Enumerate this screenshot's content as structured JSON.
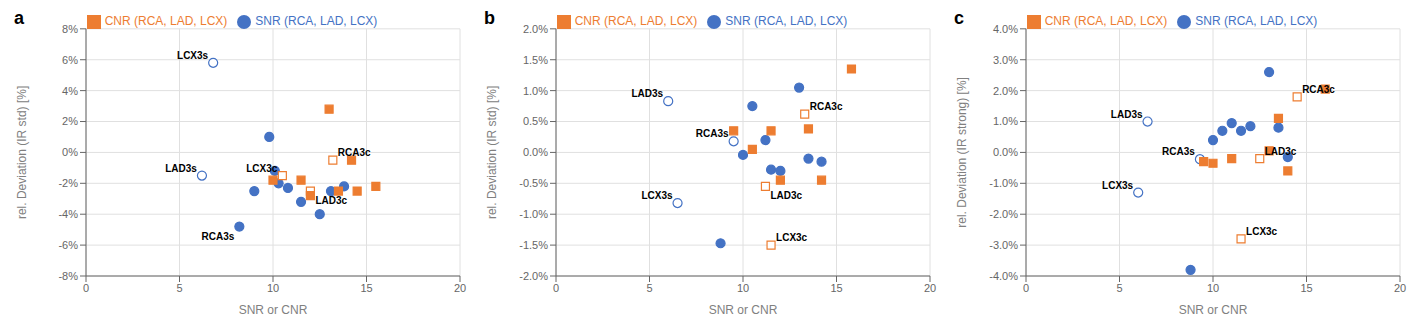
{
  "chart_data": [
    {
      "type": "scatter",
      "title": "a",
      "xlabel": "SNR or CNR",
      "ylabel": "rel. Deviation (IR std) [%]",
      "xlim": [
        0,
        20
      ],
      "ylim": [
        -8,
        8
      ],
      "xticks": [
        0,
        5,
        10,
        15,
        20
      ],
      "yticks": [
        {
          "value": -8,
          "label": "-8%"
        },
        {
          "value": -6,
          "label": "-6%"
        },
        {
          "value": -4,
          "label": "-4%"
        },
        {
          "value": -2,
          "label": "-2%"
        },
        {
          "value": 0,
          "label": "0%"
        },
        {
          "value": 2,
          "label": "2%"
        },
        {
          "value": 4,
          "label": "4%"
        },
        {
          "value": 6,
          "label": "6%"
        },
        {
          "value": 8,
          "label": "8%"
        }
      ],
      "grid": true,
      "legend": "top",
      "series": [
        {
          "name": "SNR (RCA, LAD, LCX)",
          "color": "#4472c4",
          "marker": "circle",
          "x": [
            6.8,
            6.2,
            8.2,
            9.0,
            9.8,
            10.1,
            10.3,
            10.8,
            11.5,
            12.5,
            13.1,
            13.8
          ],
          "values": [
            5.8,
            -1.5,
            -4.8,
            -2.5,
            1.0,
            -1.2,
            -2.0,
            -2.3,
            -3.2,
            -4.0,
            -2.5,
            -2.2
          ],
          "colors": [
            "#ffffff",
            "#ffffff",
            "#4472c4",
            "#4472c4",
            "#4472c4",
            "#4472c4",
            "#4472c4",
            "#4472c4",
            "#4472c4",
            "#4472c4",
            "#4472c4",
            "#4472c4"
          ]
        },
        {
          "name": "CNR (RCA, LAD, LCX)",
          "color": "#ed7d31",
          "marker": "square",
          "x": [
            10.5,
            13.2,
            12.0,
            13.0,
            10.0,
            11.5,
            12.0,
            13.5,
            14.5,
            15.5,
            14.2
          ],
          "values": [
            -1.5,
            -0.5,
            -2.5,
            2.8,
            -1.8,
            -1.8,
            -2.8,
            -2.5,
            -2.5,
            -2.2,
            -0.5
          ],
          "colors": [
            "#ffffff",
            "#ffffff",
            "#ffffff",
            "#ed7d31",
            "#ed7d31",
            "#ed7d31",
            "#ed7d31",
            "#ed7d31",
            "#ed7d31",
            "#ed7d31",
            "#ed7d31"
          ]
        }
      ],
      "annotations": [
        {
          "text": "LCX3s",
          "x": 6.8,
          "y": 5.8
        },
        {
          "text": "LAD3s",
          "x": 6.2,
          "y": -1.5
        },
        {
          "text": "RCA3s",
          "x": 8.2,
          "y": -4.8
        },
        {
          "text": "LCX3c",
          "x": 10.5,
          "y": -1.5
        },
        {
          "text": "RCA3c",
          "x": 13.2,
          "y": -0.5
        },
        {
          "text": "LAD3c",
          "x": 12.0,
          "y": -2.5
        }
      ]
    },
    {
      "type": "scatter",
      "title": "b",
      "xlabel": "SNR or CNR",
      "ylabel": "rel. Deviation (IR std) [%]",
      "xlim": [
        0,
        20
      ],
      "ylim": [
        -2.0,
        2.0
      ],
      "xticks": [
        0,
        5,
        10,
        15,
        20
      ],
      "yticks": [
        {
          "value": -2.0,
          "label": "-2.0%"
        },
        {
          "value": -1.5,
          "label": "-1.5%"
        },
        {
          "value": -1.0,
          "label": "-1.0%"
        },
        {
          "value": -0.5,
          "label": "-0.5%"
        },
        {
          "value": 0.0,
          "label": "0.0%"
        },
        {
          "value": 0.5,
          "label": "0.5%"
        },
        {
          "value": 1.0,
          "label": "1.0%"
        },
        {
          "value": 1.5,
          "label": "1.5%"
        },
        {
          "value": 2.0,
          "label": "2.0%"
        }
      ],
      "grid": true,
      "legend": "top",
      "series": [
        {
          "name": "SNR (RCA, LAD, LCX)",
          "color": "#4472c4",
          "marker": "circle",
          "x": [
            6.5,
            6.0,
            9.5,
            8.8,
            10.0,
            10.5,
            11.2,
            11.5,
            12.0,
            13.0,
            13.5,
            14.2
          ],
          "values": [
            -0.82,
            0.83,
            0.18,
            -1.47,
            -0.04,
            0.75,
            0.2,
            -0.28,
            -0.3,
            1.05,
            -0.1,
            -0.15
          ],
          "colors": [
            "#ffffff",
            "#ffffff",
            "#ffffff",
            "#4472c4",
            "#4472c4",
            "#4472c4",
            "#4472c4",
            "#4472c4",
            "#4472c4",
            "#4472c4",
            "#4472c4",
            "#4472c4"
          ]
        },
        {
          "name": "CNR (RCA, LAD, LCX)",
          "color": "#ed7d31",
          "marker": "square",
          "x": [
            11.2,
            13.3,
            11.5,
            9.5,
            10.5,
            11.5,
            12.0,
            13.5,
            14.2,
            15.8
          ],
          "values": [
            -0.55,
            0.62,
            -1.5,
            0.35,
            0.05,
            0.35,
            -0.45,
            0.38,
            -0.45,
            1.35
          ],
          "colors": [
            "#ffffff",
            "#ffffff",
            "#ffffff",
            "#ed7d31",
            "#ed7d31",
            "#ed7d31",
            "#ed7d31",
            "#ed7d31",
            "#ed7d31",
            "#ed7d31"
          ]
        }
      ],
      "annotations": [
        {
          "text": "LCX3s",
          "x": 6.5,
          "y": -0.82
        },
        {
          "text": "LAD3s",
          "x": 6.0,
          "y": 0.83
        },
        {
          "text": "RCA3s",
          "x": 9.5,
          "y": 0.18
        },
        {
          "text": "LAD3c",
          "x": 11.2,
          "y": -0.55
        },
        {
          "text": "RCA3c",
          "x": 13.3,
          "y": 0.62
        },
        {
          "text": "LCX3c",
          "x": 11.5,
          "y": -1.5
        }
      ]
    },
    {
      "type": "scatter",
      "title": "c",
      "xlabel": "SNR or CNR",
      "ylabel": "rel. Deviation (IR strong) [%]",
      "xlim": [
        0,
        20
      ],
      "ylim": [
        -4.0,
        4.0
      ],
      "xticks": [
        0,
        5,
        10,
        15,
        20
      ],
      "yticks": [
        {
          "value": -4.0,
          "label": "-4.0%"
        },
        {
          "value": -3.0,
          "label": "-3.0%"
        },
        {
          "value": -2.0,
          "label": "-2.0%"
        },
        {
          "value": -1.0,
          "label": "-1.0%"
        },
        {
          "value": 0.0,
          "label": "0.0%"
        },
        {
          "value": 1.0,
          "label": "1.0%"
        },
        {
          "value": 2.0,
          "label": "2.0%"
        },
        {
          "value": 3.0,
          "label": "3.0%"
        },
        {
          "value": 4.0,
          "label": "4.0%"
        }
      ],
      "grid": true,
      "legend": "top",
      "series": [
        {
          "name": "SNR (RCA, LAD, LCX)",
          "color": "#4472c4",
          "marker": "circle",
          "x": [
            6.0,
            6.5,
            9.3,
            8.8,
            10.0,
            10.5,
            11.0,
            11.5,
            12.0,
            13.0,
            13.5,
            14.0
          ],
          "values": [
            -1.3,
            1.0,
            -0.22,
            -3.8,
            0.4,
            0.7,
            0.95,
            0.7,
            0.85,
            2.6,
            0.8,
            -0.15
          ],
          "colors": [
            "#ffffff",
            "#ffffff",
            "#ffffff",
            "#4472c4",
            "#4472c4",
            "#4472c4",
            "#4472c4",
            "#4472c4",
            "#4472c4",
            "#4472c4",
            "#4472c4",
            "#4472c4"
          ]
        },
        {
          "name": "CNR (RCA, LAD, LCX)",
          "color": "#ed7d31",
          "marker": "square",
          "x": [
            12.5,
            14.5,
            11.5,
            9.5,
            10.0,
            11.0,
            13.0,
            13.5,
            14.0,
            16.0
          ],
          "values": [
            -0.2,
            1.8,
            -2.8,
            -0.3,
            -0.35,
            -0.2,
            0.05,
            1.1,
            -0.6,
            2.05
          ],
          "colors": [
            "#ffffff",
            "#ffffff",
            "#ffffff",
            "#ed7d31",
            "#ed7d31",
            "#ed7d31",
            "#ed7d31",
            "#ed7d31",
            "#ed7d31",
            "#ed7d31"
          ]
        }
      ],
      "annotations": [
        {
          "text": "LCX3s",
          "x": 6.0,
          "y": -1.3
        },
        {
          "text": "LAD3s",
          "x": 6.5,
          "y": 1.0
        },
        {
          "text": "RCA3s",
          "x": 9.3,
          "y": -0.22
        },
        {
          "text": "LAD3c",
          "x": 12.5,
          "y": -0.2
        },
        {
          "text": "RCA3c",
          "x": 14.5,
          "y": 1.8
        },
        {
          "text": "LCX3c",
          "x": 11.5,
          "y": -2.8
        }
      ]
    }
  ]
}
